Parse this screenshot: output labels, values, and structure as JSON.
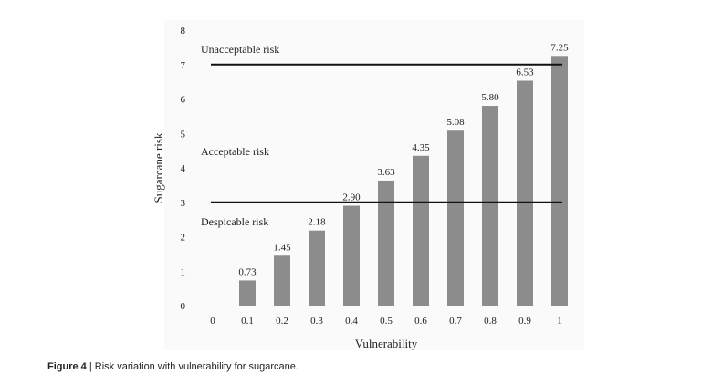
{
  "chart_data": {
    "type": "bar",
    "categories": [
      "0",
      "0.1",
      "0.2",
      "0.3",
      "0.4",
      "0.5",
      "0.6",
      "0.7",
      "0.8",
      "0.9",
      "1"
    ],
    "x": [
      0,
      0.1,
      0.2,
      0.3,
      0.4,
      0.5,
      0.6,
      0.7,
      0.8,
      0.9,
      1
    ],
    "values": [
      0,
      0.73,
      1.45,
      2.18,
      2.9,
      3.63,
      4.35,
      5.08,
      5.8,
      6.53,
      7.25
    ],
    "data_labels": [
      "",
      "0.73",
      "1.45",
      "2.18",
      "2.90",
      "3.63",
      "4.35",
      "5.08",
      "5.80",
      "6.53",
      "7.25"
    ],
    "xlabel": "Vulnerability",
    "ylabel": "Sugarcane risk",
    "ylim": [
      0,
      8
    ],
    "yticks": [
      "0",
      "1",
      "2",
      "3",
      "4",
      "5",
      "6",
      "7",
      "8"
    ],
    "grid": false,
    "bar_color": "#8c8c8c",
    "thresholds": [
      {
        "value": 7,
        "label": "Unacceptable risk"
      },
      {
        "value": 3,
        "label": "Despicable risk"
      }
    ],
    "zone_label": "Acceptable risk"
  },
  "caption": {
    "label": "Figure 4",
    "separator": " | ",
    "text": "Risk variation with vulnerability for sugarcane."
  }
}
